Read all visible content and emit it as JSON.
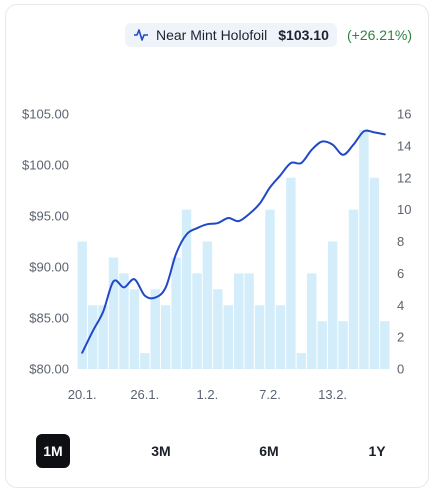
{
  "legend": {
    "series_name": "Near Mint Holofoil",
    "price": "$103.10",
    "change": "(+26.21%)"
  },
  "colors": {
    "line": "#2148c6",
    "bar": "#d4edfb",
    "positive": "#2e8540",
    "active_bg": "#0d0f12"
  },
  "chart_data": {
    "type": "line+bar",
    "x": [
      "20.1.",
      "21.1.",
      "22.1.",
      "23.1.",
      "24.1.",
      "25.1.",
      "26.1.",
      "27.1.",
      "28.1.",
      "29.1.",
      "30.1.",
      "31.1.",
      "1.2.",
      "2.2.",
      "3.2.",
      "4.2.",
      "5.2.",
      "6.2.",
      "7.2.",
      "8.2.",
      "9.2.",
      "10.2.",
      "11.2.",
      "12.2.",
      "13.2.",
      "14.2.",
      "15.2.",
      "16.2.",
      "17.2.",
      "18.2."
    ],
    "x_tick_labels": [
      "20.1.",
      "26.1.",
      "1.2.",
      "7.2.",
      "13.2."
    ],
    "series": [
      {
        "axis": "left",
        "kind": "line",
        "values": [
          81.6,
          83.7,
          85.6,
          88.6,
          88.0,
          88.8,
          87.2,
          87.0,
          88.0,
          91.3,
          93.2,
          93.8,
          94.2,
          94.3,
          94.8,
          94.5,
          95.2,
          96.2,
          97.8,
          99.0,
          100.2,
          100.2,
          101.5,
          102.3,
          102.0,
          101.0,
          102.0,
          103.3,
          103.2,
          103.0
        ]
      },
      {
        "axis": "right",
        "kind": "bar",
        "values": [
          8,
          4,
          4,
          7,
          6,
          5,
          1,
          5,
          4,
          7,
          10,
          6,
          8,
          5,
          4,
          6,
          6,
          4,
          10,
          4,
          12,
          1,
          6,
          3,
          8,
          3,
          10,
          15,
          12,
          3
        ]
      }
    ],
    "y_left": {
      "ticks": [
        "$80.00",
        "$85.00",
        "$90.00",
        "$95.00",
        "$100.00",
        "$105.00"
      ],
      "ylim": [
        80,
        105
      ]
    },
    "y_right": {
      "ticks": [
        "0",
        "2",
        "4",
        "6",
        "8",
        "10",
        "12",
        "14",
        "16"
      ],
      "ylim": [
        0,
        16
      ]
    },
    "legend_placement": "top"
  },
  "periods": [
    {
      "label": "1M",
      "active": true
    },
    {
      "label": "3M",
      "active": false
    },
    {
      "label": "6M",
      "active": false
    },
    {
      "label": "1Y",
      "active": false
    }
  ]
}
